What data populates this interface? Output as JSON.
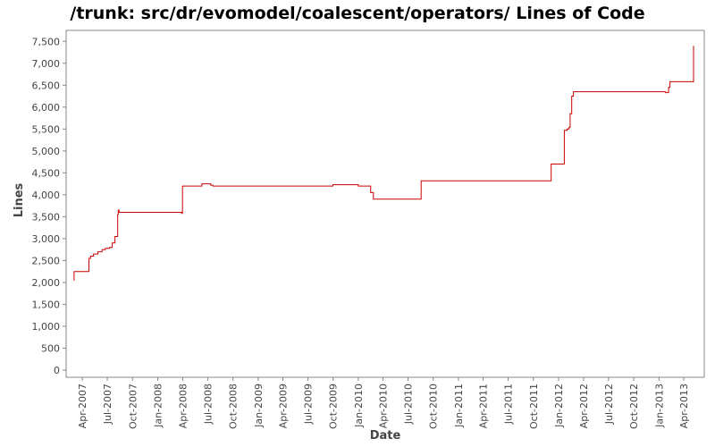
{
  "chart_data": {
    "type": "line",
    "title": "/trunk: src/dr/evomodel/coalescent/operators/ Lines of Code",
    "xlabel": "Date",
    "ylabel": "Lines",
    "ylim": [
      0,
      7750
    ],
    "xlim": [
      "2007-02-01",
      "2013-06-15"
    ],
    "y_ticks": [
      0,
      500,
      1000,
      1500,
      2000,
      2500,
      3000,
      3500,
      4000,
      4500,
      5000,
      5500,
      6000,
      6500,
      7000,
      7500
    ],
    "y_tick_labels": [
      "0",
      "500",
      "1,000",
      "1,500",
      "2,000",
      "2,500",
      "3,000",
      "3,500",
      "4,000",
      "4,500",
      "5,000",
      "5,500",
      "6,000",
      "6,500",
      "7,000",
      "7,500"
    ],
    "x_ticks": [
      "2007-04-01",
      "2007-07-01",
      "2007-10-01",
      "2008-01-01",
      "2008-04-01",
      "2008-07-01",
      "2008-10-01",
      "2009-01-01",
      "2009-04-01",
      "2009-07-01",
      "2009-10-01",
      "2010-01-01",
      "2010-04-01",
      "2010-07-01",
      "2010-10-01",
      "2011-01-01",
      "2011-04-01",
      "2011-07-01",
      "2011-10-01",
      "2012-01-01",
      "2012-04-01",
      "2012-07-01",
      "2012-10-01",
      "2013-01-01",
      "2013-04-01"
    ],
    "x_tick_labels": [
      "Apr-2007",
      "Jul-2007",
      "Oct-2007",
      "Jan-2008",
      "Apr-2008",
      "Jul-2008",
      "Oct-2008",
      "Jan-2009",
      "Apr-2009",
      "Jul-2009",
      "Oct-2009",
      "Jan-2010",
      "Apr-2010",
      "Jul-2010",
      "Oct-2010",
      "Jan-2011",
      "Apr-2011",
      "Jul-2011",
      "Oct-2011",
      "Jan-2012",
      "Apr-2012",
      "Jul-2012",
      "Oct-2012",
      "Jan-2013",
      "Apr-2013"
    ],
    "grid": false,
    "colors": {
      "series": "#cc0000",
      "axis": "#888888"
    },
    "series": [
      {
        "x": [
          "2007-03-01",
          "2007-03-02",
          "2007-04-22",
          "2007-04-25",
          "2007-05-01",
          "2007-05-12",
          "2007-05-28",
          "2007-06-12",
          "2007-06-24",
          "2007-07-10",
          "2007-07-19",
          "2007-07-29",
          "2007-08-08",
          "2007-08-10",
          "2007-08-13",
          "2008-03-25",
          "2008-03-28",
          "2008-03-31",
          "2008-06-10",
          "2008-07-12",
          "2008-07-20",
          "2009-09-30",
          "2010-01-01",
          "2010-02-15",
          "2010-02-25",
          "2010-08-15",
          "2010-08-18",
          "2011-06-30",
          "2011-12-05",
          "2012-01-16",
          "2012-01-22",
          "2012-02-01",
          "2012-02-08",
          "2012-02-12",
          "2012-02-18",
          "2012-02-24",
          "2013-01-25",
          "2013-02-05",
          "2013-02-10",
          "2013-05-05",
          "2013-05-07"
        ],
        "y": [
          2050,
          2250,
          2250,
          2550,
          2600,
          2650,
          2700,
          2750,
          2780,
          2800,
          2900,
          3050,
          3550,
          3650,
          3600,
          3600,
          3580,
          4200,
          4250,
          4220,
          4200,
          4230,
          4200,
          4050,
          3900,
          3900,
          4320,
          4320,
          4700,
          4700,
          5470,
          5500,
          5540,
          5850,
          6250,
          6350,
          6330,
          6450,
          6580,
          6580,
          7400
        ]
      }
    ]
  }
}
